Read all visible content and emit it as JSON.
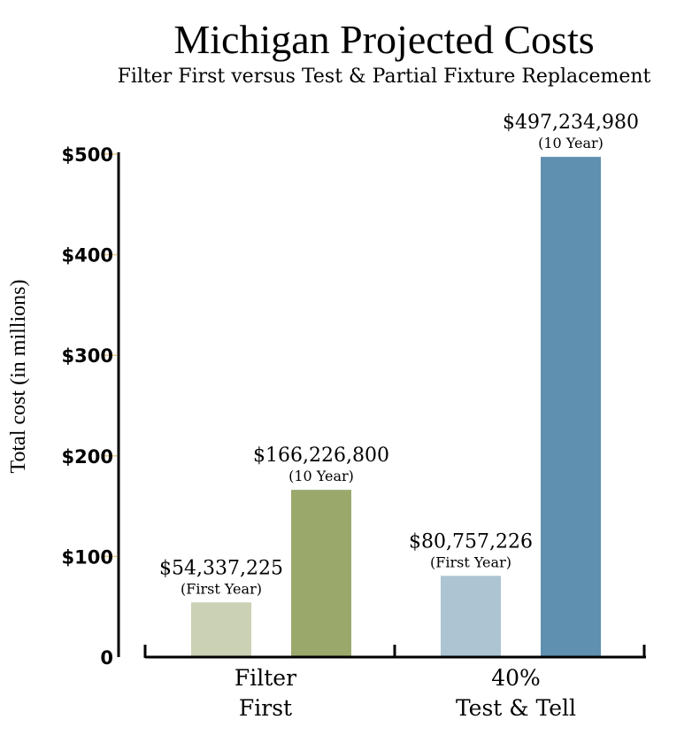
{
  "chart_data": {
    "type": "bar",
    "title": "Michigan Projected Costs",
    "subtitle": "Filter First versus Test & Partial Fixture Replacement",
    "ylabel": "Total cost (in millions)",
    "ylim": [
      0,
      500
    ],
    "yticks": [
      {
        "value": 0,
        "label": "0"
      },
      {
        "value": 100,
        "label": "$100"
      },
      {
        "value": 200,
        "label": "$200"
      },
      {
        "value": 300,
        "label": "$300"
      },
      {
        "value": 400,
        "label": "$400"
      },
      {
        "value": 500,
        "label": "$500"
      }
    ],
    "groups": [
      {
        "category_lines": [
          "Filter",
          "First"
        ],
        "bars": [
          {
            "value": 54.337225,
            "label": "$54,337,225",
            "sublabel": "(First Year)",
            "color": "#cbd1b4"
          },
          {
            "value": 166.2268,
            "label": "$166,226,800",
            "sublabel": "(10 Year)",
            "color": "#9aa86c"
          }
        ]
      },
      {
        "category_lines": [
          "40%",
          "Test & Tell"
        ],
        "bars": [
          {
            "value": 80.757226,
            "label": "$80,757,226",
            "sublabel": "(First Year)",
            "color": "#adc5d3"
          },
          {
            "value": 497.23498,
            "label": "$497,234,980",
            "sublabel": "(10 Year)",
            "color": "#5f90b0"
          }
        ]
      }
    ],
    "grid": false,
    "legend": "none",
    "colors": {
      "axis": "#000000",
      "tick_mark": "#e8c98a"
    }
  }
}
